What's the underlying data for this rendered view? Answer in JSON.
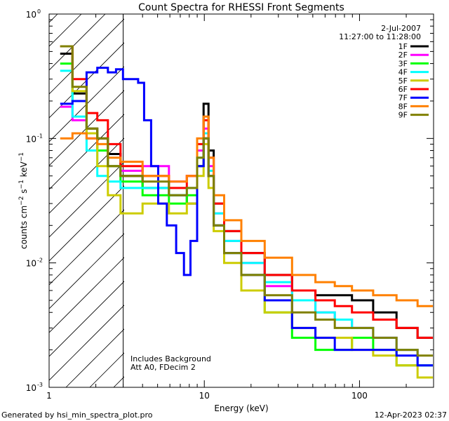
{
  "chart_data": {
    "type": "line",
    "title": "Count Spectra for RHESSI Front Segments",
    "xlabel": "Energy (keV)",
    "ylabel": "counts cm⁻² s⁻¹ keV⁻¹",
    "x_scale": "log",
    "y_scale": "log",
    "xlim": [
      1.0,
      300.0
    ],
    "ylim": [
      0.001,
      1.0
    ],
    "x_ticks": [
      {
        "v": 1,
        "label": "1"
      },
      {
        "v": 10,
        "label": "10"
      },
      {
        "v": 100,
        "label": "100"
      }
    ],
    "y_ticks": [
      {
        "v": 1,
        "base": "10",
        "exp": "0"
      },
      {
        "v": 0.1,
        "base": "10",
        "exp": "-1"
      },
      {
        "v": 0.01,
        "base": "10",
        "exp": "-2"
      },
      {
        "v": 0.001,
        "base": "10",
        "exp": "-3"
      }
    ],
    "hatched_region_below_keV": 3.0,
    "date": "2-Jul-2007",
    "time_range": "11:27:00 to 11:28:00",
    "annotations": [
      "Includes Background",
      "Att A0, FDecim 2"
    ],
    "legend_position": "top-right",
    "series": [
      {
        "name": "1F",
        "color": "#000000",
        "points": [
          [
            1.25,
            0.48
          ],
          [
            1.6,
            0.23
          ],
          [
            1.9,
            0.12
          ],
          [
            2.2,
            0.1
          ],
          [
            2.6,
            0.075
          ],
          [
            3.2,
            0.05
          ],
          [
            5,
            0.04
          ],
          [
            7,
            0.035
          ],
          [
            8.5,
            0.03
          ],
          [
            9.5,
            0.06
          ],
          [
            10.3,
            0.19
          ],
          [
            11,
            0.08
          ],
          [
            12,
            0.03
          ],
          [
            15,
            0.018
          ],
          [
            20,
            0.012
          ],
          [
            30,
            0.008
          ],
          [
            45,
            0.006
          ],
          [
            60,
            0.0055
          ],
          [
            80,
            0.0055
          ],
          [
            100,
            0.005
          ],
          [
            150,
            0.004
          ],
          [
            200,
            0.003
          ],
          [
            280,
            0.0025
          ]
        ]
      },
      {
        "name": "2F",
        "color": "#ff00ff",
        "points": [
          [
            1.25,
            0.18
          ],
          [
            1.6,
            0.14
          ],
          [
            1.9,
            0.1
          ],
          [
            2.2,
            0.08
          ],
          [
            2.6,
            0.06
          ],
          [
            3.2,
            0.055
          ],
          [
            5,
            0.06
          ],
          [
            7,
            0.045
          ],
          [
            8.5,
            0.05
          ],
          [
            9.5,
            0.08
          ],
          [
            10.3,
            0.12
          ],
          [
            11,
            0.06
          ],
          [
            12,
            0.025
          ],
          [
            15,
            0.015
          ],
          [
            20,
            0.01
          ],
          [
            30,
            0.0065
          ],
          [
            45,
            0.005
          ],
          [
            60,
            0.004
          ],
          [
            80,
            0.0035
          ],
          [
            100,
            0.003
          ],
          [
            150,
            0.0025
          ],
          [
            200,
            0.002
          ],
          [
            280,
            0.0015
          ]
        ]
      },
      {
        "name": "3F",
        "color": "#00ff00",
        "points": [
          [
            1.25,
            0.4
          ],
          [
            1.6,
            0.2
          ],
          [
            1.9,
            0.11
          ],
          [
            2.2,
            0.08
          ],
          [
            2.6,
            0.06
          ],
          [
            3.2,
            0.045
          ],
          [
            5,
            0.035
          ],
          [
            7,
            0.03
          ],
          [
            8.5,
            0.035
          ],
          [
            9.5,
            0.06
          ],
          [
            10.3,
            0.1
          ],
          [
            11,
            0.05
          ],
          [
            12,
            0.02
          ],
          [
            15,
            0.012
          ],
          [
            20,
            0.008
          ],
          [
            30,
            0.004
          ],
          [
            45,
            0.0025
          ],
          [
            60,
            0.002
          ],
          [
            80,
            0.002
          ],
          [
            100,
            0.0025
          ],
          [
            150,
            0.002
          ],
          [
            200,
            0.0015
          ],
          [
            280,
            0.0015
          ]
        ]
      },
      {
        "name": "4F",
        "color": "#00ffff",
        "points": [
          [
            1.25,
            0.35
          ],
          [
            1.6,
            0.15
          ],
          [
            1.9,
            0.08
          ],
          [
            2.2,
            0.05
          ],
          [
            2.6,
            0.045
          ],
          [
            3.2,
            0.04
          ],
          [
            5,
            0.04
          ],
          [
            7,
            0.035
          ],
          [
            8.5,
            0.04
          ],
          [
            9.5,
            0.07
          ],
          [
            10.3,
            0.11
          ],
          [
            11,
            0.055
          ],
          [
            12,
            0.025
          ],
          [
            15,
            0.015
          ],
          [
            20,
            0.01
          ],
          [
            30,
            0.007
          ],
          [
            45,
            0.005
          ],
          [
            60,
            0.004
          ],
          [
            80,
            0.0035
          ],
          [
            100,
            0.003
          ],
          [
            150,
            0.0025
          ],
          [
            200,
            0.002
          ],
          [
            280,
            0.0015
          ]
        ]
      },
      {
        "name": "5F",
        "color": "#cccc00",
        "points": [
          [
            1.25,
            0.55
          ],
          [
            1.6,
            0.24
          ],
          [
            1.9,
            0.11
          ],
          [
            2.2,
            0.06
          ],
          [
            2.6,
            0.035
          ],
          [
            3.2,
            0.025
          ],
          [
            5,
            0.03
          ],
          [
            7,
            0.025
          ],
          [
            8.5,
            0.03
          ],
          [
            9.5,
            0.05
          ],
          [
            10.3,
            0.09
          ],
          [
            11,
            0.04
          ],
          [
            12,
            0.018
          ],
          [
            15,
            0.01
          ],
          [
            20,
            0.006
          ],
          [
            30,
            0.004
          ],
          [
            45,
            0.003
          ],
          [
            60,
            0.0025
          ],
          [
            80,
            0.0025
          ],
          [
            100,
            0.002
          ],
          [
            150,
            0.0018
          ],
          [
            200,
            0.0015
          ],
          [
            280,
            0.0012
          ]
        ]
      },
      {
        "name": "6F",
        "color": "#ff0000",
        "points": [
          [
            1.25,
            0.55
          ],
          [
            1.6,
            0.3
          ],
          [
            1.9,
            0.16
          ],
          [
            2.2,
            0.14
          ],
          [
            2.6,
            0.09
          ],
          [
            3.2,
            0.06
          ],
          [
            5,
            0.05
          ],
          [
            7,
            0.04
          ],
          [
            8.5,
            0.05
          ],
          [
            9.5,
            0.09
          ],
          [
            10.3,
            0.14
          ],
          [
            11,
            0.07
          ],
          [
            12,
            0.03
          ],
          [
            15,
            0.018
          ],
          [
            20,
            0.012
          ],
          [
            30,
            0.008
          ],
          [
            45,
            0.006
          ],
          [
            60,
            0.005
          ],
          [
            80,
            0.0045
          ],
          [
            100,
            0.004
          ],
          [
            150,
            0.0035
          ],
          [
            200,
            0.003
          ],
          [
            280,
            0.0025
          ]
        ]
      },
      {
        "name": "7F",
        "color": "#0000ff",
        "points": [
          [
            1.25,
            0.19
          ],
          [
            1.6,
            0.2
          ],
          [
            1.9,
            0.34
          ],
          [
            2.2,
            0.37
          ],
          [
            2.6,
            0.34
          ],
          [
            2.8,
            0.36
          ],
          [
            3.2,
            0.3
          ],
          [
            3.6,
            0.3
          ],
          [
            3.9,
            0.28
          ],
          [
            4.3,
            0.14
          ],
          [
            4.8,
            0.06
          ],
          [
            5.3,
            0.03
          ],
          [
            6.2,
            0.02
          ],
          [
            7,
            0.012
          ],
          [
            7.8,
            0.008
          ],
          [
            8.5,
            0.015
          ],
          [
            9.5,
            0.06
          ],
          [
            10.3,
            0.1
          ],
          [
            11,
            0.05
          ],
          [
            12,
            0.02
          ],
          [
            15,
            0.012
          ],
          [
            20,
            0.008
          ],
          [
            30,
            0.005
          ],
          [
            45,
            0.003
          ],
          [
            60,
            0.0025
          ],
          [
            80,
            0.002
          ],
          [
            100,
            0.002
          ],
          [
            150,
            0.002
          ],
          [
            200,
            0.0018
          ],
          [
            280,
            0.0015
          ]
        ]
      },
      {
        "name": "8F",
        "color": "#ff8000",
        "points": [
          [
            1.25,
            0.1
          ],
          [
            1.6,
            0.11
          ],
          [
            1.9,
            0.1
          ],
          [
            2.2,
            0.09
          ],
          [
            2.6,
            0.07
          ],
          [
            3.2,
            0.065
          ],
          [
            5,
            0.05
          ],
          [
            7,
            0.045
          ],
          [
            8.5,
            0.05
          ],
          [
            9.5,
            0.1
          ],
          [
            10.3,
            0.15
          ],
          [
            11,
            0.07
          ],
          [
            12,
            0.035
          ],
          [
            15,
            0.022
          ],
          [
            20,
            0.015
          ],
          [
            30,
            0.011
          ],
          [
            45,
            0.008
          ],
          [
            60,
            0.007
          ],
          [
            80,
            0.0065
          ],
          [
            100,
            0.006
          ],
          [
            150,
            0.0055
          ],
          [
            200,
            0.005
          ],
          [
            280,
            0.0045
          ]
        ]
      },
      {
        "name": "9F",
        "color": "#808000",
        "points": [
          [
            1.25,
            0.55
          ],
          [
            1.6,
            0.26
          ],
          [
            1.9,
            0.12
          ],
          [
            2.2,
            0.1
          ],
          [
            2.6,
            0.06
          ],
          [
            3.2,
            0.05
          ],
          [
            5,
            0.045
          ],
          [
            7,
            0.035
          ],
          [
            8.5,
            0.04
          ],
          [
            9.5,
            0.07
          ],
          [
            10.3,
            0.1
          ],
          [
            11,
            0.05
          ],
          [
            12,
            0.02
          ],
          [
            15,
            0.012
          ],
          [
            20,
            0.008
          ],
          [
            30,
            0.0055
          ],
          [
            45,
            0.004
          ],
          [
            60,
            0.0035
          ],
          [
            80,
            0.003
          ],
          [
            100,
            0.003
          ],
          [
            150,
            0.0025
          ],
          [
            200,
            0.002
          ],
          [
            280,
            0.0018
          ]
        ]
      }
    ]
  },
  "footer": {
    "generated_by": "Generated by hsi_min_spectra_plot.pro",
    "timestamp": "12-Apr-2023 02:37"
  }
}
